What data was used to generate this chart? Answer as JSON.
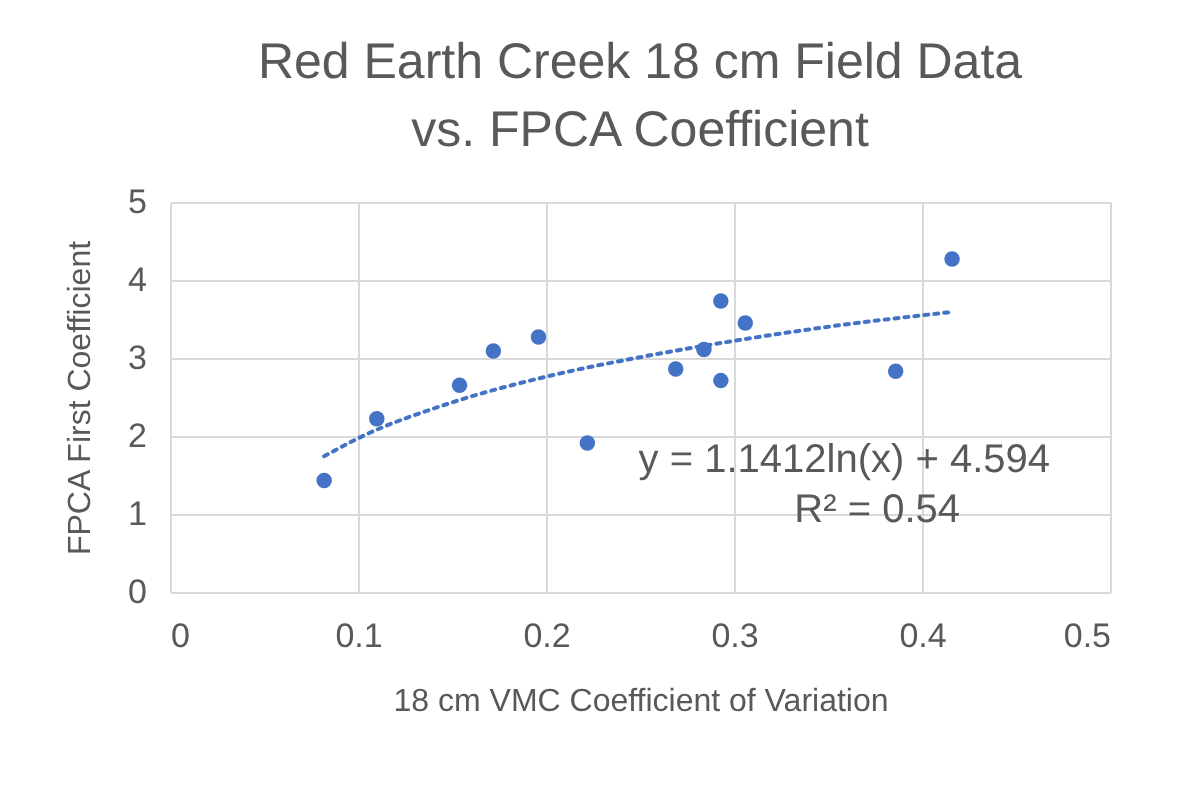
{
  "chart_data": {
    "type": "scatter",
    "title": "Red Earth Creek 18 cm Field Data\nvs. FPCA Coefficient",
    "xlabel": "18 cm VMC Coefficient of Variation",
    "ylabel": "FPCA First Coefficient",
    "xlim": [
      0,
      0.5
    ],
    "xticks": [
      0,
      0.1,
      0.2,
      0.3,
      0.4,
      0.5
    ],
    "ylim": [
      0,
      5
    ],
    "yticks": [
      0,
      1,
      2,
      3,
      4,
      5
    ],
    "grid": true,
    "series": [
      {
        "color": "#4472c4",
        "marker": "circle",
        "x": [
          0.082,
          0.11,
          0.154,
          0.172,
          0.196,
          0.222,
          0.269,
          0.284,
          0.293,
          0.293,
          0.306,
          0.386,
          0.416
        ],
        "values": [
          1.43,
          2.22,
          2.65,
          3.09,
          3.27,
          1.91,
          2.86,
          3.11,
          3.73,
          2.71,
          3.45,
          2.83,
          4.27
        ]
      },
      {
        "type": "line",
        "color": "#4472c4",
        "line_style": "dotted",
        "x": [
          0.082,
          0.1,
          0.15,
          0.2,
          0.25,
          0.3,
          0.35,
          0.416
        ],
        "values": [
          1.74,
          1.97,
          2.43,
          2.76,
          3.01,
          3.22,
          3.4,
          3.59
        ]
      }
    ],
    "annotations": [
      "y = 1.1412ln(x) + 4.594",
      "R² = 0.54"
    ]
  }
}
